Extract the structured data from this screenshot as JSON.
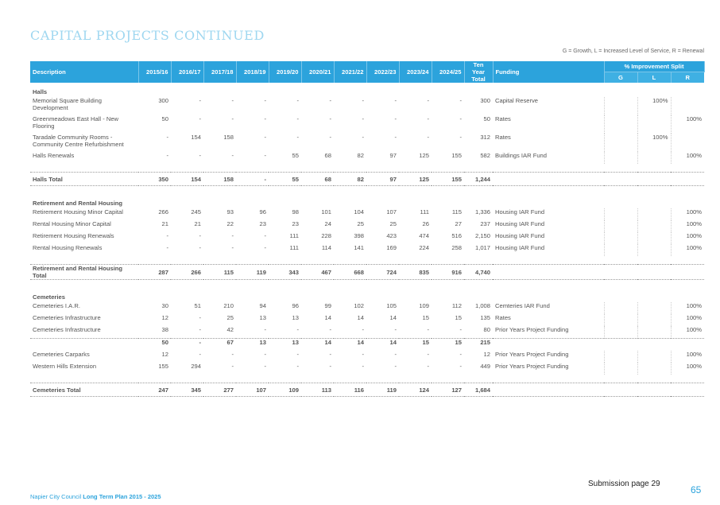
{
  "title": "CAPITAL PROJECTS CONTINUED",
  "legend_note": "G = Growth, L = Increased Level of Service, R = Renewal",
  "headers": {
    "description": "Description",
    "years": [
      "2015/16",
      "2016/17",
      "2017/18",
      "2018/19",
      "2019/20",
      "2020/21",
      "2021/22",
      "2022/23",
      "2023/24",
      "2024/25"
    ],
    "ten_year_total_line1": "Ten Year",
    "ten_year_total_line2": "Total",
    "funding": "Funding",
    "improvement_split": "% Improvement Split",
    "g": "G",
    "l": "L",
    "r": "R"
  },
  "rows": [
    {
      "type": "section",
      "description": "Halls"
    },
    {
      "type": "item",
      "tall": true,
      "description": "Memorial Square Building Development",
      "values": [
        "300",
        "-",
        "-",
        "-",
        "-",
        "-",
        "-",
        "-",
        "-",
        "-"
      ],
      "total": "300",
      "funding": "Capital Reserve",
      "g": "",
      "l": "100%",
      "r": ""
    },
    {
      "type": "item",
      "tall": true,
      "description": "Greenmeadows East Hall - New Flooring",
      "values": [
        "50",
        "-",
        "-",
        "-",
        "-",
        "-",
        "-",
        "-",
        "-",
        "-"
      ],
      "total": "50",
      "funding": "Rates",
      "g": "",
      "l": "",
      "r": "100%"
    },
    {
      "type": "item",
      "tall": true,
      "description": "Taradale Community Rooms - Community Centre Refurbishment",
      "values": [
        "-",
        "154",
        "158",
        "-",
        "-",
        "-",
        "-",
        "-",
        "-",
        "-"
      ],
      "total": "312",
      "funding": "Rates",
      "g": "",
      "l": "100%",
      "r": ""
    },
    {
      "type": "item",
      "description": "Halls Renewals",
      "values": [
        "-",
        "-",
        "-",
        "-",
        "55",
        "68",
        "82",
        "97",
        "125",
        "155"
      ],
      "total": "582",
      "funding": "Buildings IAR Fund",
      "g": "",
      "l": "",
      "r": "100%"
    },
    {
      "type": "gap"
    },
    {
      "type": "total",
      "description": "Halls Total",
      "values": [
        "350",
        "154",
        "158",
        "-",
        "55",
        "68",
        "82",
        "97",
        "125",
        "155"
      ],
      "total": "1,244"
    },
    {
      "type": "gap"
    },
    {
      "type": "section",
      "description": "Retirement and Rental Housing"
    },
    {
      "type": "item",
      "description": "Retirement Housing Minor Capital",
      "values": [
        "266",
        "245",
        "93",
        "96",
        "98",
        "101",
        "104",
        "107",
        "111",
        "115"
      ],
      "total": "1,336",
      "funding": "Housing IAR Fund",
      "g": "",
      "l": "",
      "r": "100%"
    },
    {
      "type": "item",
      "description": "Rental Housing Minor Capital",
      "values": [
        "21",
        "21",
        "22",
        "23",
        "23",
        "24",
        "25",
        "25",
        "26",
        "27"
      ],
      "total": "237",
      "funding": "Housing IAR Fund",
      "g": "",
      "l": "",
      "r": "100%"
    },
    {
      "type": "item",
      "description": "Retirement Housing Renewals",
      "values": [
        "-",
        "-",
        "-",
        "-",
        "111",
        "228",
        "398",
        "423",
        "474",
        "516"
      ],
      "total": "2,150",
      "funding": "Housing IAR Fund",
      "g": "",
      "l": "",
      "r": "100%"
    },
    {
      "type": "item",
      "description": "Rental Housing Renewals",
      "values": [
        "-",
        "-",
        "-",
        "-",
        "111",
        "114",
        "141",
        "169",
        "224",
        "258"
      ],
      "total": "1,017",
      "funding": "Housing IAR Fund",
      "g": "",
      "l": "",
      "r": "100%"
    },
    {
      "type": "gap"
    },
    {
      "type": "total",
      "description": "Retirement and Rental Housing Total",
      "values": [
        "287",
        "266",
        "115",
        "119",
        "343",
        "467",
        "668",
        "724",
        "835",
        "916"
      ],
      "total": "4,740"
    },
    {
      "type": "gap"
    },
    {
      "type": "section",
      "description": "Cemeteries"
    },
    {
      "type": "item",
      "description": "Cemeteries I.A.R.",
      "values": [
        "30",
        "51",
        "210",
        "94",
        "96",
        "99",
        "102",
        "105",
        "109",
        "112"
      ],
      "total": "1,008",
      "funding": "Cemteries IAR Fund",
      "g": "",
      "l": "",
      "r": "100%"
    },
    {
      "type": "item",
      "description": "Cemeteries Infrastructure",
      "values": [
        "12",
        "-",
        "25",
        "13",
        "13",
        "14",
        "14",
        "14",
        "15",
        "15"
      ],
      "total": "135",
      "funding": "Rates",
      "g": "",
      "l": "",
      "r": "100%"
    },
    {
      "type": "item",
      "description": "Cemeteries Infrastructure",
      "values": [
        "38",
        "-",
        "42",
        "-",
        "-",
        "-",
        "-",
        "-",
        "-",
        "-"
      ],
      "total": "80",
      "funding": "Prior Years Project Funding",
      "g": "",
      "l": "",
      "r": "100%"
    },
    {
      "type": "subtotal",
      "description": "",
      "values": [
        "50",
        "-",
        "67",
        "13",
        "13",
        "14",
        "14",
        "14",
        "15",
        "15"
      ],
      "total": "215"
    },
    {
      "type": "item",
      "description": "Cemeteries Carparks",
      "values": [
        "12",
        "-",
        "-",
        "-",
        "-",
        "-",
        "-",
        "-",
        "-",
        "-"
      ],
      "total": "12",
      "funding": "Prior Years Project Funding",
      "g": "",
      "l": "",
      "r": "100%"
    },
    {
      "type": "item",
      "description": "Western Hills Extension",
      "values": [
        "155",
        "294",
        "-",
        "-",
        "-",
        "-",
        "-",
        "-",
        "-",
        "-"
      ],
      "total": "449",
      "funding": "Prior Years Project Funding",
      "g": "",
      "l": "",
      "r": "100%"
    },
    {
      "type": "gap"
    },
    {
      "type": "total",
      "description": "Cemeteries Total",
      "values": [
        "247",
        "345",
        "277",
        "107",
        "109",
        "113",
        "116",
        "119",
        "124",
        "127"
      ],
      "total": "1,684"
    }
  ],
  "footer": {
    "org": "Napier City Council",
    "plan": "Long Term Plan 2015 - 2025",
    "submission": "Submission page 29",
    "page_number": "65"
  }
}
